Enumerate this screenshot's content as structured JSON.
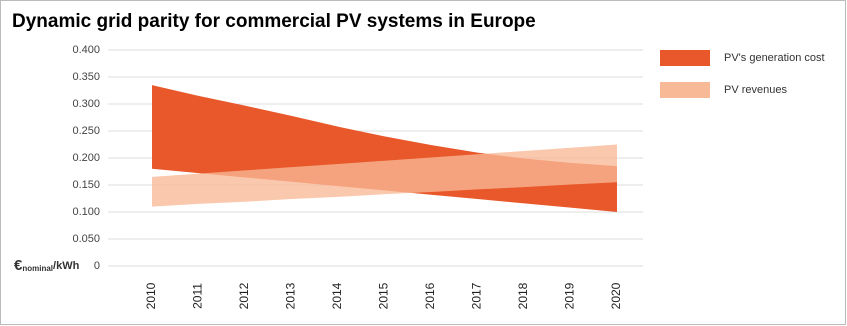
{
  "chart_data": {
    "type": "range-area",
    "title": "Dynamic grid parity for commercial PV systems in Europe",
    "y_label": {
      "symbol": "€",
      "subscript": "nominal",
      "unit": "/kWh"
    },
    "x": [
      "2010",
      "2011",
      "2012",
      "2013",
      "2014",
      "2015",
      "2016",
      "2017",
      "2018",
      "2019",
      "2020"
    ],
    "series": [
      {
        "name": "PV's generation cost",
        "color": "#e8582a",
        "opacity": 1,
        "high": [
          0.335,
          0.315,
          0.297,
          0.278,
          0.258,
          0.24,
          0.224,
          0.21,
          0.199,
          0.191,
          0.185
        ],
        "low": [
          0.18,
          0.172,
          0.164,
          0.156,
          0.148,
          0.14,
          0.132,
          0.124,
          0.116,
          0.108,
          0.1
        ]
      },
      {
        "name": "PV revenues",
        "color": "#f8b996",
        "opacity": 0.78,
        "high": [
          0.165,
          0.171,
          0.177,
          0.183,
          0.189,
          0.195,
          0.201,
          0.207,
          0.213,
          0.219,
          0.225
        ],
        "low": [
          0.11,
          0.115,
          0.119,
          0.124,
          0.128,
          0.133,
          0.137,
          0.142,
          0.146,
          0.151,
          0.155
        ]
      }
    ],
    "ylim": [
      0,
      0.4
    ],
    "yticks": [
      0,
      {
        "value": 0.05,
        "label": "0.050"
      },
      {
        "value": 0.1,
        "label": "0.100"
      },
      {
        "value": 0.15,
        "label": "0.150"
      },
      {
        "value": 0.2,
        "label": "0.200"
      },
      {
        "value": 0.25,
        "label": "0.250"
      },
      {
        "value": 0.3,
        "label": "0.300"
      },
      {
        "value": 0.35,
        "label": "0.350"
      },
      {
        "value": 0.4,
        "label": "0.400"
      }
    ],
    "grid": true,
    "legend": "right"
  }
}
